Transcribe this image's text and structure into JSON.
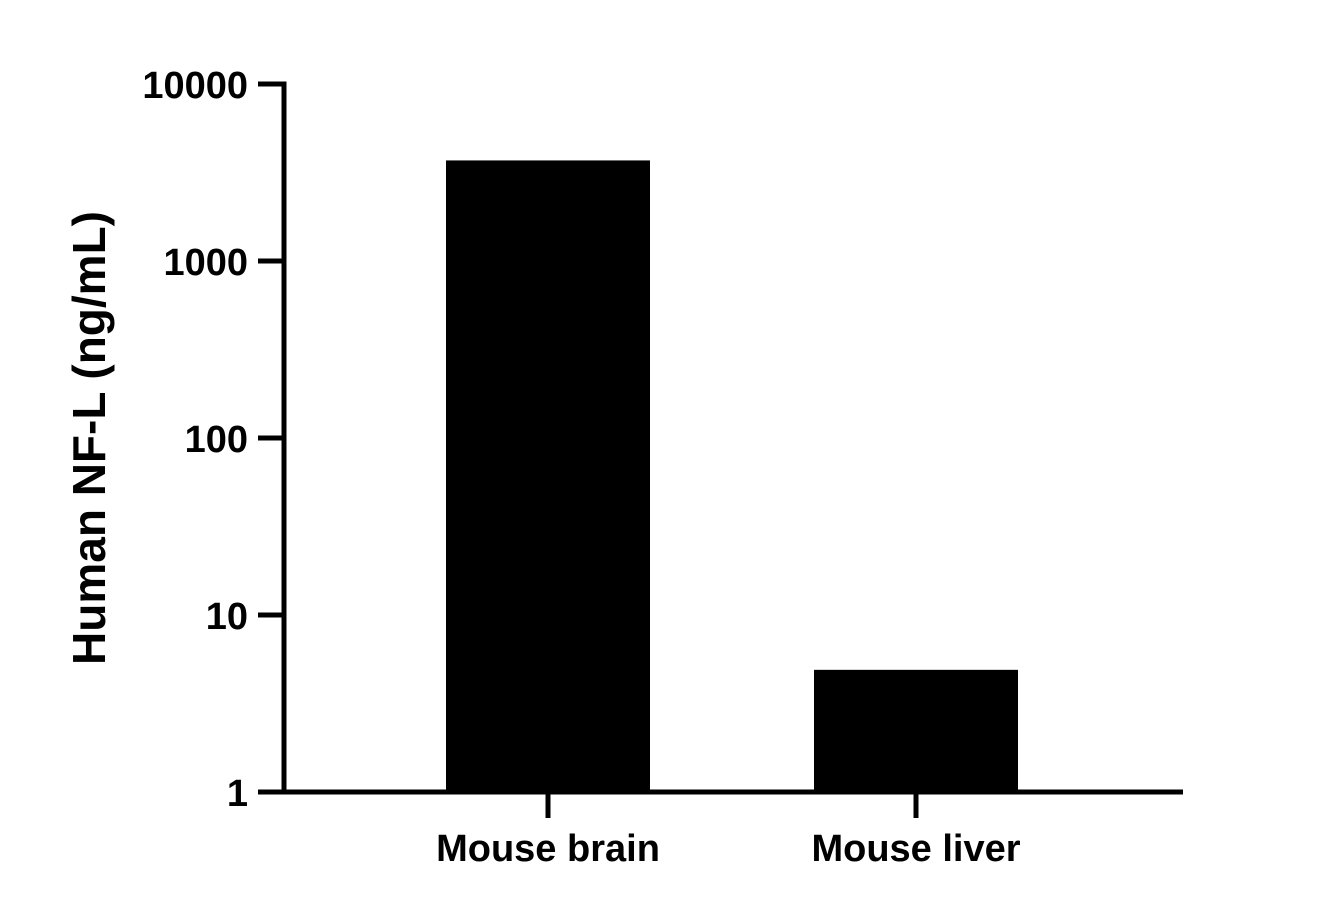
{
  "chart_data": {
    "type": "bar",
    "title": "",
    "xlabel": "",
    "ylabel": "Human NF-L (ng/mL)",
    "yscale": "log",
    "ylim": [
      1,
      10000
    ],
    "yticks": [
      1,
      10,
      100,
      1000,
      10000
    ],
    "ytick_labels": [
      "1",
      "10",
      "100",
      "1000",
      "10000"
    ],
    "categories": [
      "Mouse brain",
      "Mouse liver"
    ],
    "values": [
      3700,
      4.9
    ],
    "bar_color": "#000000",
    "grid": false,
    "legend": "none"
  }
}
